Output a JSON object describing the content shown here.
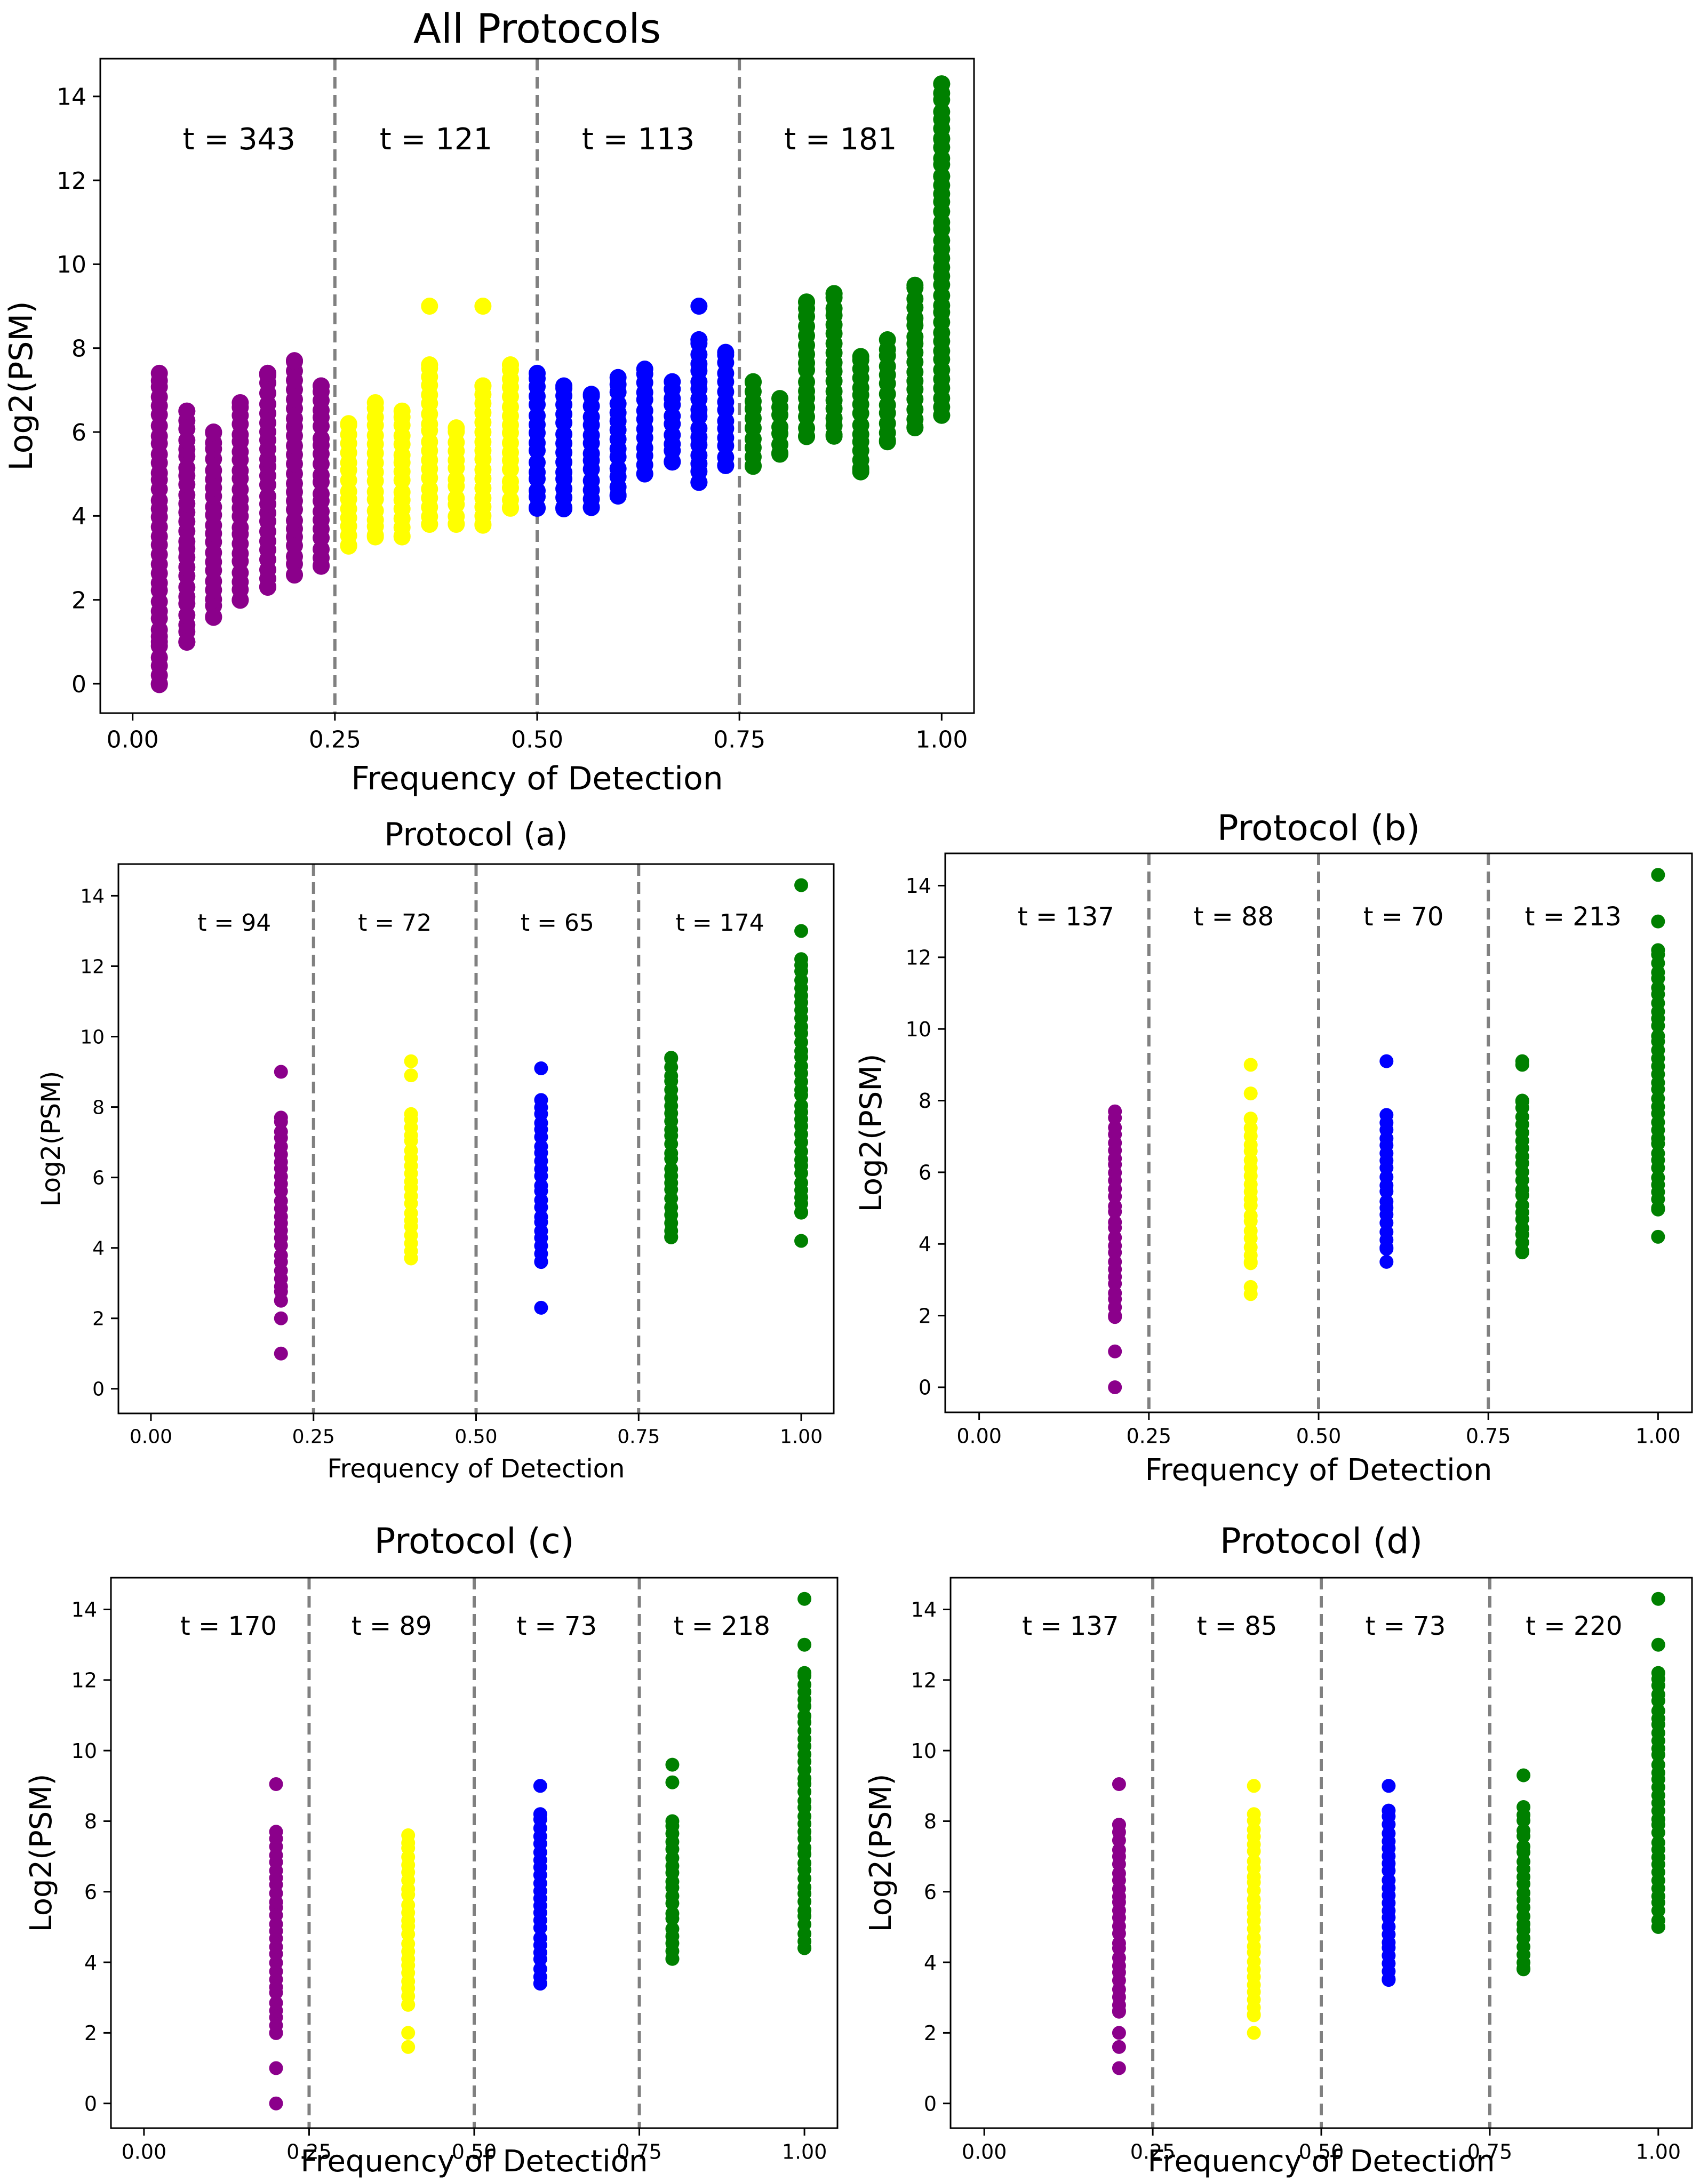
{
  "chart_data": [
    {
      "id": "all",
      "type": "scatter",
      "title": "All Protocols",
      "xlabel": "Frequency of Detection",
      "ylabel": "Log2(PSM)",
      "xlim": [
        -0.04,
        1.04
      ],
      "ylim": [
        -0.7,
        14.9
      ],
      "xticks": [
        0.0,
        0.25,
        0.5,
        0.75,
        1.0
      ],
      "xtick_labels": [
        "0.00",
        "0.25",
        "0.50",
        "0.75",
        "1.00"
      ],
      "yticks": [
        0,
        2,
        4,
        6,
        8,
        10,
        12,
        14
      ],
      "ytick_labels": [
        "0",
        "2",
        "4",
        "6",
        "8",
        "10",
        "12",
        "14"
      ],
      "dividers": [
        0.25,
        0.5,
        0.75
      ],
      "annotations": [
        "t = 343",
        "t = 121",
        "t = 113",
        "t = 181"
      ],
      "series": [
        {
          "name": "0-0.25",
          "color": "#8B008B",
          "x": [
            0.033,
            0.067,
            0.1,
            0.133,
            0.167,
            0.2,
            0.233
          ],
          "ymin": [
            0,
            1,
            1.6,
            2,
            2.3,
            2.6,
            2.8
          ],
          "ymax": [
            7.4,
            6.5,
            6,
            6.7,
            7.4,
            7.7,
            7.1
          ],
          "extra": [
            [
              0.033,
              0
            ],
            [
              0.033,
              1
            ],
            [
              0.067,
              1
            ],
            [
              0.167,
              7.4
            ],
            [
              0.2,
              7.7
            ],
            [
              0.233,
              7.1
            ]
          ]
        },
        {
          "name": "0.25-0.5",
          "color": "#FFFF00",
          "x": [
            0.267,
            0.3,
            0.333,
            0.367,
            0.4,
            0.433,
            0.467
          ],
          "ymin": [
            3.3,
            3.5,
            3.5,
            3.8,
            3.8,
            3.8,
            4.2
          ],
          "ymax": [
            6.2,
            6.7,
            6.5,
            7.6,
            6.1,
            7.1,
            7.6
          ],
          "extra": [
            [
              0.367,
              9
            ],
            [
              0.433,
              9
            ],
            [
              0.367,
              7.6
            ],
            [
              0.467,
              7.6
            ]
          ]
        },
        {
          "name": "0.5-0.75",
          "color": "#0000FF",
          "x": [
            0.5,
            0.533,
            0.567,
            0.6,
            0.633,
            0.667,
            0.7,
            0.733
          ],
          "ymin": [
            4.2,
            4.2,
            4.2,
            4.5,
            5,
            5.3,
            4.8,
            5.2
          ],
          "ymax": [
            7.4,
            7.1,
            6.9,
            7.3,
            7.5,
            7.2,
            8.2,
            7.9
          ],
          "extra": [
            [
              0.7,
              9
            ],
            [
              0.7,
              8.2
            ]
          ]
        },
        {
          "name": "0.75-1",
          "color": "#008000",
          "x": [
            0.767,
            0.8,
            0.833,
            0.867,
            0.9,
            0.933,
            0.967,
            1.0
          ],
          "ymin": [
            5.2,
            5.5,
            5.9,
            5.9,
            5.1,
            5.8,
            6.1,
            6.4
          ],
          "ymax": [
            7.2,
            6.8,
            9.1,
            9.3,
            7.8,
            8.2,
            9.5,
            14.3
          ],
          "extra": [
            [
              0.9,
              5.05
            ],
            [
              1.0,
              14.3
            ],
            [
              1.0,
              13
            ],
            [
              1.0,
              12.1
            ],
            [
              0.833,
              9.1
            ],
            [
              0.867,
              9.3
            ]
          ]
        }
      ]
    },
    {
      "id": "a",
      "type": "scatter",
      "title": "Protocol (a)",
      "xlabel": "Frequency of Detection",
      "ylabel": "Log2(PSM)",
      "xlim": [
        -0.05,
        1.05
      ],
      "ylim": [
        -0.7,
        14.9
      ],
      "xticks": [
        0.0,
        0.25,
        0.5,
        0.75,
        1.0
      ],
      "xtick_labels": [
        "0.00",
        "0.25",
        "0.50",
        "0.75",
        "1.00"
      ],
      "yticks": [
        0,
        2,
        4,
        6,
        8,
        10,
        12,
        14
      ],
      "ytick_labels": [
        "0",
        "2",
        "4",
        "6",
        "8",
        "10",
        "12",
        "14"
      ],
      "dividers": [
        0.25,
        0.5,
        0.75
      ],
      "annotations": [
        "t = 94",
        "t = 72",
        "t = 65",
        "t = 174"
      ],
      "series": [
        {
          "name": "0-0.25",
          "color": "#8B008B",
          "x": [
            0.2
          ],
          "ymin": [
            2.5
          ],
          "ymax": [
            7.7
          ],
          "extra": [
            [
              0.2,
              9
            ],
            [
              0.2,
              2
            ],
            [
              0.2,
              1
            ]
          ]
        },
        {
          "name": "0.25-0.5",
          "color": "#FFFF00",
          "x": [
            0.4
          ],
          "ymin": [
            3.7
          ],
          "ymax": [
            7.8
          ],
          "extra": [
            [
              0.4,
              9.3
            ],
            [
              0.4,
              8.9
            ]
          ]
        },
        {
          "name": "0.5-0.75",
          "color": "#0000FF",
          "x": [
            0.6
          ],
          "ymin": [
            3.6
          ],
          "ymax": [
            8.2
          ],
          "extra": [
            [
              0.6,
              9.1
            ],
            [
              0.6,
              2.3
            ]
          ]
        },
        {
          "name": "0.75-1",
          "color": "#008000",
          "x": [
            0.8,
            1.0
          ],
          "ymin": [
            4.3,
            5
          ],
          "ymax": [
            9.4,
            12.2
          ],
          "extra": [
            [
              1.0,
              14.3
            ],
            [
              1.0,
              13
            ],
            [
              1.0,
              4.2
            ]
          ]
        }
      ]
    },
    {
      "id": "b",
      "type": "scatter",
      "title": "Protocol (b)",
      "xlabel": "Frequency of Detection",
      "ylabel": "Log2(PSM)",
      "xlim": [
        -0.05,
        1.05
      ],
      "ylim": [
        -0.7,
        14.9
      ],
      "xticks": [
        0.0,
        0.25,
        0.5,
        0.75,
        1.0
      ],
      "xtick_labels": [
        "0.00",
        "0.25",
        "0.50",
        "0.75",
        "1.00"
      ],
      "yticks": [
        0,
        2,
        4,
        6,
        8,
        10,
        12,
        14
      ],
      "ytick_labels": [
        "0",
        "2",
        "4",
        "6",
        "8",
        "10",
        "12",
        "14"
      ],
      "dividers": [
        0.25,
        0.5,
        0.75
      ],
      "annotations": [
        "t = 137",
        "t = 88",
        "t = 70",
        "t = 213"
      ],
      "series": [
        {
          "name": "0-0.25",
          "color": "#8B008B",
          "x": [
            0.2
          ],
          "ymin": [
            2
          ],
          "ymax": [
            7.7
          ],
          "extra": [
            [
              0.2,
              1
            ],
            [
              0.2,
              0
            ]
          ]
        },
        {
          "name": "0.25-0.5",
          "color": "#FFFF00",
          "x": [
            0.4
          ],
          "ymin": [
            3.5
          ],
          "ymax": [
            7.5
          ],
          "extra": [
            [
              0.4,
              9
            ],
            [
              0.4,
              8.2
            ],
            [
              0.4,
              2.8
            ],
            [
              0.4,
              2.6
            ]
          ]
        },
        {
          "name": "0.5-0.75",
          "color": "#0000FF",
          "x": [
            0.6
          ],
          "ymin": [
            3.9
          ],
          "ymax": [
            7.6
          ],
          "extra": [
            [
              0.6,
              9.1
            ],
            [
              0.6,
              3.5
            ]
          ]
        },
        {
          "name": "0.75-1",
          "color": "#008000",
          "x": [
            0.8,
            1.0
          ],
          "ymin": [
            3.8,
            5
          ],
          "ymax": [
            8,
            12.2
          ],
          "extra": [
            [
              0.8,
              9.1
            ],
            [
              0.8,
              9
            ],
            [
              1.0,
              14.3
            ],
            [
              1.0,
              13
            ],
            [
              1.0,
              4.2
            ]
          ]
        }
      ]
    },
    {
      "id": "c",
      "type": "scatter",
      "title": "Protocol (c)",
      "xlabel": "Frequency of Detection",
      "ylabel": "Log2(PSM)",
      "xlim": [
        -0.05,
        1.05
      ],
      "ylim": [
        -0.7,
        14.9
      ],
      "xticks": [
        0.0,
        0.25,
        0.5,
        0.75,
        1.0
      ],
      "xtick_labels": [
        "0.00",
        "0.25",
        "0.50",
        "0.75",
        "1.00"
      ],
      "yticks": [
        0,
        2,
        4,
        6,
        8,
        10,
        12,
        14
      ],
      "ytick_labels": [
        "0",
        "2",
        "4",
        "6",
        "8",
        "10",
        "12",
        "14"
      ],
      "dividers": [
        0.25,
        0.5,
        0.75
      ],
      "annotations": [
        "t = 170",
        "t = 89",
        "t = 73",
        "t = 218"
      ],
      "series": [
        {
          "name": "0-0.25",
          "color": "#8B008B",
          "x": [
            0.2
          ],
          "ymin": [
            2
          ],
          "ymax": [
            7.7
          ],
          "extra": [
            [
              0.2,
              9.05
            ],
            [
              0.2,
              1
            ],
            [
              0.2,
              0
            ]
          ]
        },
        {
          "name": "0.25-0.5",
          "color": "#FFFF00",
          "x": [
            0.4
          ],
          "ymin": [
            2.8
          ],
          "ymax": [
            7.6
          ],
          "extra": [
            [
              0.4,
              2
            ],
            [
              0.4,
              1.6
            ]
          ]
        },
        {
          "name": "0.5-0.75",
          "color": "#0000FF",
          "x": [
            0.6
          ],
          "ymin": [
            3.4
          ],
          "ymax": [
            8.2
          ],
          "extra": [
            [
              0.6,
              9
            ]
          ]
        },
        {
          "name": "0.75-1",
          "color": "#008000",
          "x": [
            0.8,
            1.0
          ],
          "ymin": [
            4.1,
            4.4
          ],
          "ymax": [
            8,
            12.2
          ],
          "extra": [
            [
              0.8,
              9.6
            ],
            [
              0.8,
              9.1
            ],
            [
              1.0,
              14.3
            ],
            [
              1.0,
              13
            ]
          ]
        }
      ]
    },
    {
      "id": "d",
      "type": "scatter",
      "title": "Protocol (d)",
      "xlabel": "Frequency of Detection",
      "ylabel": "Log2(PSM)",
      "xlim": [
        -0.05,
        1.05
      ],
      "ylim": [
        -0.7,
        14.9
      ],
      "xticks": [
        0.0,
        0.25,
        0.5,
        0.75,
        1.0
      ],
      "xtick_labels": [
        "0.00",
        "0.25",
        "0.50",
        "0.75",
        "1.00"
      ],
      "yticks": [
        0,
        2,
        4,
        6,
        8,
        10,
        12,
        14
      ],
      "ytick_labels": [
        "0",
        "2",
        "4",
        "6",
        "8",
        "10",
        "12",
        "14"
      ],
      "dividers": [
        0.25,
        0.5,
        0.75
      ],
      "annotations": [
        "t = 137",
        "t = 85",
        "t = 73",
        "t = 220"
      ],
      "series": [
        {
          "name": "0-0.25",
          "color": "#8B008B",
          "x": [
            0.2
          ],
          "ymin": [
            2.6
          ],
          "ymax": [
            7.9
          ],
          "extra": [
            [
              0.2,
              9.05
            ],
            [
              0.2,
              2
            ],
            [
              0.2,
              1.6
            ],
            [
              0.2,
              1
            ]
          ]
        },
        {
          "name": "0.25-0.5",
          "color": "#FFFF00",
          "x": [
            0.4
          ],
          "ymin": [
            2.5
          ],
          "ymax": [
            8.2
          ],
          "extra": [
            [
              0.4,
              9
            ],
            [
              0.4,
              2
            ]
          ]
        },
        {
          "name": "0.5-0.75",
          "color": "#0000FF",
          "x": [
            0.6
          ],
          "ymin": [
            3.5
          ],
          "ymax": [
            8.3
          ],
          "extra": [
            [
              0.6,
              9
            ]
          ]
        },
        {
          "name": "0.75-1",
          "color": "#008000",
          "x": [
            0.8,
            1.0
          ],
          "ymin": [
            3.8,
            5
          ],
          "ymax": [
            8.4,
            12.2
          ],
          "extra": [
            [
              0.8,
              9.3
            ],
            [
              1.0,
              14.3
            ],
            [
              1.0,
              13
            ]
          ]
        }
      ]
    }
  ]
}
